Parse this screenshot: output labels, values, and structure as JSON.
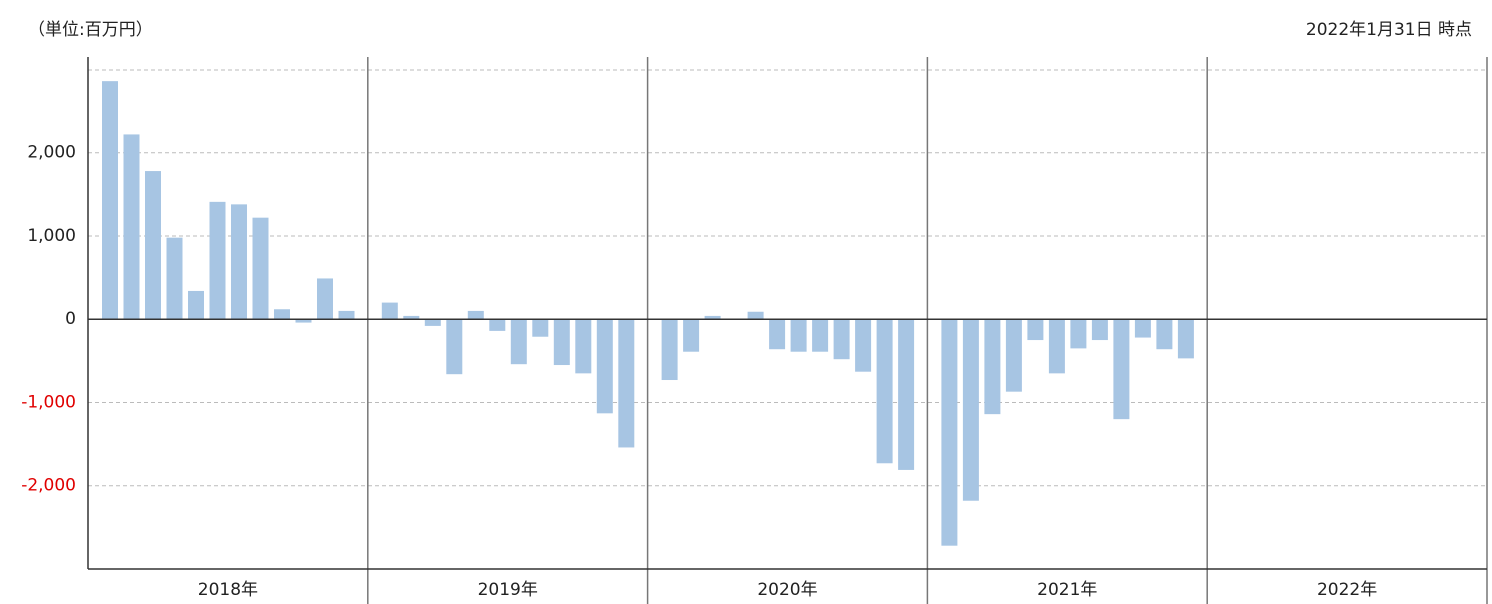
{
  "chart_data": {
    "type": "bar",
    "unit_note": "（単位:百万円）",
    "as_of": "2022年1月31日 時点",
    "color": "#a7c5e3",
    "negative_tick_color": "#e00000",
    "ylim": [
      -3000,
      3150
    ],
    "yticks": [
      {
        "value": -2000,
        "label": "-2,000"
      },
      {
        "value": -1000,
        "label": "-1,000"
      },
      0,
      {
        "value": 1000,
        "label": "1,000"
      },
      {
        "value": 2000,
        "label": "2,000"
      }
    ],
    "grid": true,
    "groups": [
      {
        "label": "2018年",
        "values": [
          2860,
          2220,
          1780,
          980,
          340,
          1410,
          1380,
          1220,
          120,
          -40,
          490,
          100
        ]
      },
      {
        "label": "2019年",
        "values": [
          200,
          40,
          -80,
          -660,
          100,
          -140,
          -540,
          -210,
          -550,
          -650,
          -1130,
          -1540
        ]
      },
      {
        "label": "2020年",
        "values": [
          -730,
          -390,
          40,
          0,
          90,
          -360,
          -390,
          -390,
          -480,
          -630,
          -1730,
          -1810
        ]
      },
      {
        "label": "2021年",
        "values": [
          -2720,
          -2180,
          -1140,
          -870,
          -250,
          -650,
          -350,
          -250,
          -1200,
          -220,
          -360,
          -470
        ]
      },
      {
        "label": "2022年",
        "values": []
      }
    ]
  }
}
